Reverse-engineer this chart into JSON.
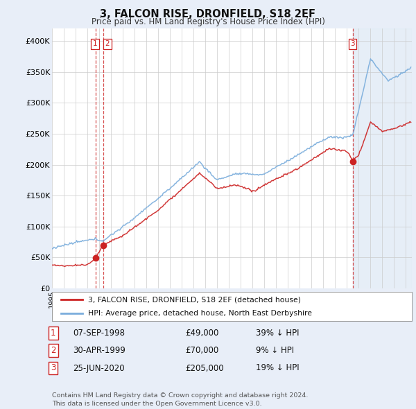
{
  "title": "3, FALCON RISE, DRONFIELD, S18 2EF",
  "subtitle": "Price paid vs. HM Land Registry's House Price Index (HPI)",
  "ylim": [
    0,
    420000
  ],
  "yticks": [
    0,
    50000,
    100000,
    150000,
    200000,
    250000,
    300000,
    350000,
    400000
  ],
  "ytick_labels": [
    "£0",
    "£50K",
    "£100K",
    "£150K",
    "£200K",
    "£250K",
    "£300K",
    "£350K",
    "£400K"
  ],
  "xlim_start": 1995.0,
  "xlim_end": 2025.5,
  "hpi_color": "#7aaddc",
  "price_color": "#cc2222",
  "sale1_date": 1998.69,
  "sale1_price": 49000,
  "sale1_label": "1",
  "sale2_date": 1999.33,
  "sale2_price": 70000,
  "sale2_label": "2",
  "sale3_date": 2020.48,
  "sale3_price": 205000,
  "sale3_label": "3",
  "legend_line1": "3, FALCON RISE, DRONFIELD, S18 2EF (detached house)",
  "legend_line2": "HPI: Average price, detached house, North East Derbyshire",
  "table_rows": [
    [
      "1",
      "07-SEP-1998",
      "£49,000",
      "39% ↓ HPI"
    ],
    [
      "2",
      "30-APR-1999",
      "£70,000",
      "9% ↓ HPI"
    ],
    [
      "3",
      "25-JUN-2020",
      "£205,000",
      "19% ↓ HPI"
    ]
  ],
  "footer": "Contains HM Land Registry data © Crown copyright and database right 2024.\nThis data is licensed under the Open Government Licence v3.0.",
  "background_color": "#e8eef8",
  "plot_bg_color": "#ffffff",
  "shade_color": "#dce8f5"
}
